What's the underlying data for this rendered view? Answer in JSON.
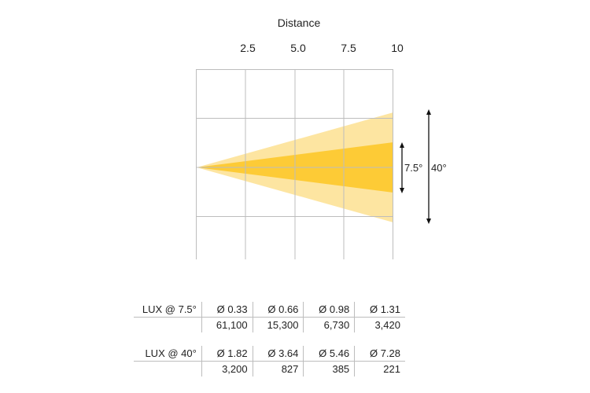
{
  "header": {
    "distance_label": "Distance"
  },
  "diagram": {
    "distance_ticks": [
      "2.5",
      "5.0",
      "7.5",
      "10"
    ],
    "beams": [
      {
        "angle_label": "40°",
        "angle_deg": 40,
        "color": "#FDE5A1"
      },
      {
        "angle_label": "7.5°",
        "angle_deg": 7.5,
        "color": "#FDCB36"
      }
    ],
    "grid_color": "#BDBDBD"
  },
  "tables": [
    {
      "label": "LUX @ 7.5°",
      "diameters": [
        "Ø 0.33",
        "Ø 0.66",
        "Ø 0.98",
        "Ø 1.31"
      ],
      "lux": [
        "61,100",
        "15,300",
        "6,730",
        "3,420"
      ]
    },
    {
      "label": "LUX @ 40°",
      "diameters": [
        "Ø 1.82",
        "Ø 3.64",
        "Ø 5.46",
        "Ø 7.28"
      ],
      "lux": [
        "3,200",
        "827",
        "385",
        "221"
      ]
    }
  ]
}
